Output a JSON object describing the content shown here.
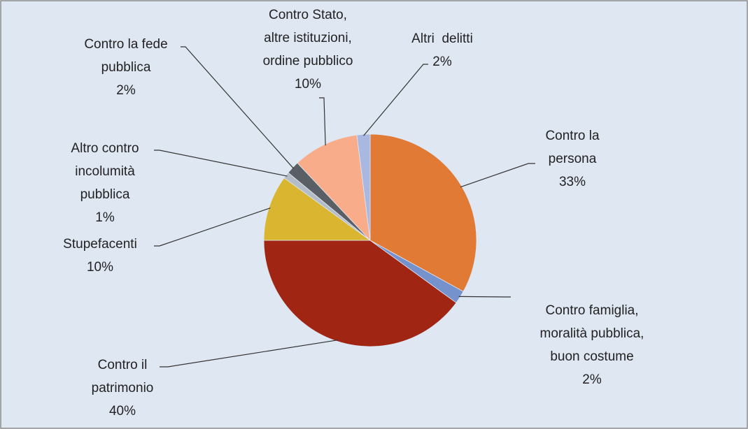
{
  "chart_data": {
    "type": "pie",
    "categories": [
      [
        "Contro la",
        "persona"
      ],
      [
        "Contro famiglia,",
        "moralità pubblica,",
        "buon costume"
      ],
      [
        "Contro il",
        "patrimonio"
      ],
      [
        "Stupefacenti"
      ],
      [
        "Altro contro",
        "incolumità",
        "pubblica"
      ],
      [
        "Contro la fede",
        "pubblica"
      ],
      [
        "Contro Stato,",
        "altre istituzioni,",
        "ordine pubblico"
      ],
      [
        "Altri  delitti"
      ]
    ],
    "values": [
      33,
      2,
      40,
      10,
      1,
      2,
      10,
      2
    ],
    "value_labels": [
      "33%",
      "2%",
      "40%",
      "10%",
      "1%",
      "2%",
      "10%",
      "2%"
    ],
    "colors": [
      "#e07a35",
      "#7592cc",
      "#a02513",
      "#d9b530",
      "#b4bcc8",
      "#5a5f66",
      "#f9ac8a",
      "#a8b8e0"
    ]
  }
}
